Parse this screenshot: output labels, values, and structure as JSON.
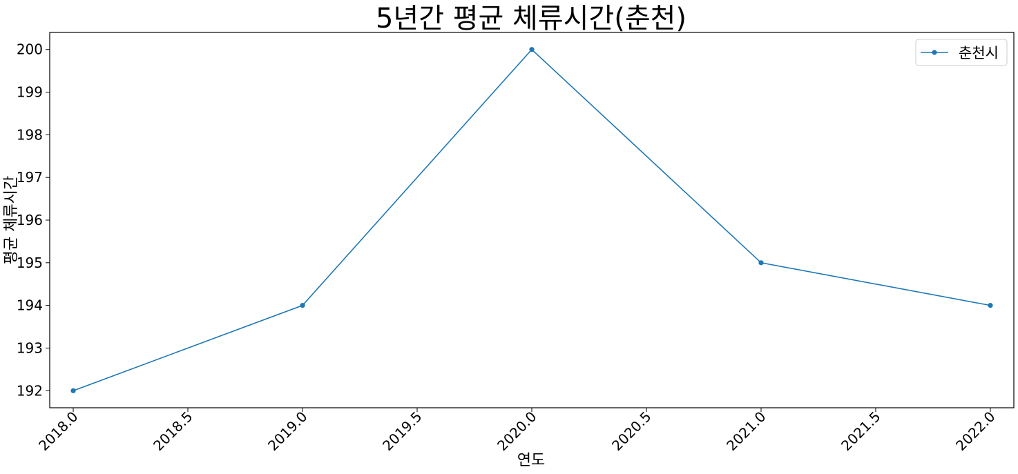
{
  "chart_data": {
    "type": "line",
    "title": "5년간 평균 체류시간(춘천)",
    "xlabel": "연도",
    "ylabel": "평균 체류시간",
    "xlim": [
      2017.8975,
      2022.1025
    ],
    "ylim": [
      191.6,
      200.4
    ],
    "x_ticks": [
      2018.0,
      2018.5,
      2019.0,
      2019.5,
      2020.0,
      2020.5,
      2021.0,
      2021.5,
      2022.0
    ],
    "x_tick_labels": [
      "2018.0",
      "2018.5",
      "2019.0",
      "2019.5",
      "2020.0",
      "2020.5",
      "2021.0",
      "2021.5",
      "2022.0"
    ],
    "y_ticks": [
      192,
      193,
      194,
      195,
      196,
      197,
      198,
      199,
      200
    ],
    "y_tick_labels": [
      "192",
      "193",
      "194",
      "195",
      "196",
      "197",
      "198",
      "199",
      "200"
    ],
    "grid": false,
    "legend_position": "top-right",
    "series": [
      {
        "name": "춘천시",
        "color": "#1f77b4",
        "marker": "circle",
        "x": [
          2018,
          2019,
          2020,
          2021,
          2022
        ],
        "y": [
          192,
          194,
          200,
          195,
          194
        ]
      }
    ]
  }
}
